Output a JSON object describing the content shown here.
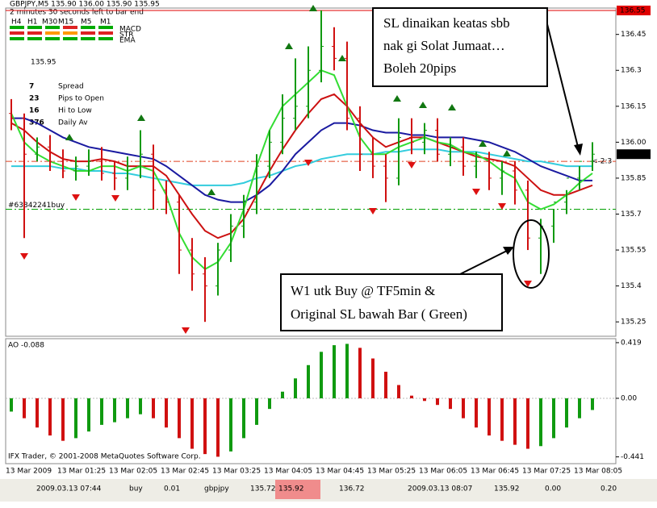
{
  "header": {
    "symbol_line": "GBPJPY,M5  135.90 136.00 135.90 135.95",
    "timer": "2 minutes 30 seconds left to bar end",
    "timeframes": [
      "H4",
      "H1",
      "M30",
      "M15",
      "M5",
      "M1"
    ],
    "indicators": [
      "MACD",
      "STR",
      "EMA"
    ],
    "price": "135.95",
    "stats": [
      {
        "value": "7",
        "label": "Spread",
        "color": "#f0a020"
      },
      {
        "value": "23",
        "label": "Pips to Open",
        "color": "#e04020"
      },
      {
        "value": "16",
        "label": "Hi to Low",
        "color": "#f0a020"
      },
      {
        "value": "376",
        "label": "Daily Av",
        "color": "#e04020"
      }
    ]
  },
  "chart_data": [
    {
      "type": "ohlc",
      "ylim": [
        135.19,
        136.56
      ],
      "yticks": [
        136.45,
        136.3,
        136.15,
        {
          "value": 136,
          "label": "136.00"
        },
        135.85,
        135.7,
        135.55,
        135.4,
        135.25
      ],
      "x_labels": [
        "13 Mar 2009",
        "13 Mar 01:25",
        "13 Mar 02:05",
        "13 Mar 02:45",
        "13 Mar 03:25",
        "13 Mar 04:05",
        "13 Mar 04:45",
        "13 Mar 05:25",
        "13 Mar 06:05",
        "13 Mar 06:45",
        "13 Mar 07:25",
        "13 Mar 08:05"
      ],
      "up_color": "#109a10",
      "down_color": "#d01010",
      "ohlc": {
        "open": [
          136.12,
          136.1,
          135.95,
          135.98,
          135.92,
          135.88,
          135.9,
          135.92,
          135.87,
          135.85,
          135.9,
          135.95,
          135.8,
          135.75,
          135.55,
          135.45,
          135.4,
          135.55,
          135.65,
          135.75,
          135.9,
          136.0,
          136.1,
          136.15,
          136.3,
          136.4,
          136.35,
          136.1,
          135.95,
          135.9,
          135.85,
          136.02,
          136.0,
          136.05,
          135.95,
          135.98,
          135.9,
          135.92,
          135.85,
          135.88,
          135.8,
          135.6,
          135.65,
          135.75,
          135.85,
          135.92
        ],
        "high": [
          136.18,
          136.12,
          136.02,
          136.03,
          135.97,
          135.94,
          135.97,
          135.98,
          135.92,
          135.94,
          136.05,
          135.99,
          135.84,
          135.78,
          135.6,
          135.52,
          135.58,
          135.7,
          135.78,
          135.95,
          136.05,
          136.2,
          136.35,
          136.4,
          136.55,
          136.48,
          136.42,
          136.15,
          136.02,
          135.95,
          136.1,
          136.1,
          136.08,
          136.1,
          136.02,
          136.02,
          135.96,
          135.96,
          135.92,
          135.92,
          135.84,
          135.68,
          135.72,
          135.8,
          135.9,
          136.0
        ],
        "low": [
          136.05,
          135.6,
          135.92,
          135.88,
          135.85,
          135.84,
          135.86,
          135.84,
          135.8,
          135.8,
          135.85,
          135.72,
          135.7,
          135.45,
          135.38,
          135.25,
          135.36,
          135.5,
          135.6,
          135.7,
          135.85,
          135.95,
          136.05,
          136.1,
          136.25,
          136.3,
          136.05,
          135.88,
          135.85,
          135.75,
          135.82,
          135.95,
          135.95,
          135.92,
          135.9,
          135.86,
          135.85,
          135.8,
          135.78,
          135.74,
          135.55,
          135.45,
          135.58,
          135.7,
          135.8,
          135.88
        ],
        "close": [
          136.1,
          135.95,
          135.98,
          135.92,
          135.88,
          135.9,
          135.92,
          135.87,
          135.85,
          135.9,
          135.95,
          135.8,
          135.75,
          135.55,
          135.45,
          135.4,
          135.55,
          135.65,
          135.75,
          135.9,
          136.0,
          136.1,
          136.15,
          136.3,
          136.4,
          136.35,
          136.1,
          135.95,
          135.9,
          135.85,
          136.02,
          136.0,
          136.05,
          135.95,
          135.98,
          135.9,
          135.92,
          135.85,
          135.88,
          135.8,
          135.6,
          135.65,
          135.75,
          135.85,
          135.92,
          135.95
        ]
      },
      "series": [
        {
          "color": "#33ccdd",
          "values": [
            135.9,
            135.9,
            135.9,
            135.9,
            135.89,
            135.89,
            135.88,
            135.88,
            135.87,
            135.87,
            135.86,
            135.85,
            135.84,
            135.83,
            135.82,
            135.82,
            135.82,
            135.82,
            135.83,
            135.85,
            135.86,
            135.88,
            135.9,
            135.91,
            135.93,
            135.94,
            135.95,
            135.95,
            135.95,
            135.96,
            135.96,
            135.97,
            135.97,
            135.97,
            135.96,
            135.96,
            135.96,
            135.95,
            135.94,
            135.93,
            135.92,
            135.92,
            135.91,
            135.9,
            135.9,
            135.9
          ]
        },
        {
          "color": "#1a1aa0",
          "values": [
            136.1,
            136.1,
            136.08,
            136.05,
            136.02,
            136.0,
            135.98,
            135.97,
            135.96,
            135.95,
            135.94,
            135.93,
            135.9,
            135.86,
            135.82,
            135.78,
            135.76,
            135.75,
            135.75,
            135.78,
            135.82,
            135.88,
            135.95,
            136.0,
            136.05,
            136.08,
            136.08,
            136.07,
            136.05,
            136.04,
            136.04,
            136.03,
            136.03,
            136.02,
            136.02,
            136.02,
            136.01,
            136.0,
            135.98,
            135.96,
            135.93,
            135.9,
            135.88,
            135.86,
            135.84,
            135.84
          ]
        },
        {
          "color": "#cc1111",
          "values": [
            136.08,
            136.05,
            136.0,
            135.96,
            135.93,
            135.92,
            135.92,
            135.93,
            135.92,
            135.9,
            135.9,
            135.9,
            135.86,
            135.78,
            135.7,
            135.63,
            135.6,
            135.62,
            135.68,
            135.78,
            135.88,
            135.97,
            136.05,
            136.12,
            136.18,
            136.2,
            136.15,
            136.08,
            136.02,
            135.98,
            136.0,
            136.02,
            136.02,
            136.0,
            135.98,
            135.96,
            135.94,
            135.93,
            135.92,
            135.9,
            135.85,
            135.8,
            135.78,
            135.78,
            135.8,
            135.82
          ]
        },
        {
          "color": "#33dd33",
          "values": [
            136.12,
            136.0,
            135.95,
            135.92,
            135.9,
            135.88,
            135.88,
            135.9,
            135.9,
            135.88,
            135.9,
            135.88,
            135.78,
            135.62,
            135.52,
            135.47,
            135.5,
            135.58,
            135.72,
            135.9,
            136.05,
            136.15,
            136.2,
            136.25,
            136.3,
            136.28,
            136.15,
            136.02,
            135.95,
            135.95,
            135.98,
            136.0,
            136.02,
            136.0,
            135.99,
            135.96,
            135.95,
            135.92,
            135.88,
            135.85,
            135.75,
            135.72,
            135.74,
            135.78,
            135.83,
            135.87
          ]
        }
      ],
      "stop_line": {
        "value": 136.55,
        "color": "#e00000"
      },
      "bid_line": {
        "value": 135.92,
        "color": "#e04020",
        "note": "<-2:3"
      },
      "order_line": {
        "value": 135.72,
        "label": "#63842241buy",
        "color": "#00a000"
      },
      "current_price": 135.95,
      "annotations": [
        [
          "SL dinaikan keatas sbb",
          "nak gi Solat Jumaat…",
          "Boleh 20pips"
        ],
        [
          "W1 utk Buy @ TF5min &",
          "Original SL bawah Bar ( Green)"
        ]
      ]
    },
    {
      "type": "bar",
      "title": "AO -0.088",
      "footer": "IFX Trader, © 2001-2008 MetaQuotes Software Corp.",
      "ylim": [
        -0.492,
        0.443
      ],
      "yticks": [
        0.419,
        {
          "value": 0,
          "label": "0.00"
        },
        -0.441
      ],
      "up_color": "#109a10",
      "down_color": "#d01010",
      "values": [
        -0.1,
        -0.15,
        -0.22,
        -0.28,
        -0.32,
        -0.3,
        -0.25,
        -0.2,
        -0.18,
        -0.15,
        -0.12,
        -0.15,
        -0.22,
        -0.3,
        -0.38,
        -0.42,
        -0.44,
        -0.4,
        -0.3,
        -0.2,
        -0.08,
        0.05,
        0.15,
        0.25,
        0.35,
        0.4,
        0.41,
        0.38,
        0.3,
        0.2,
        0.1,
        0.02,
        -0.02,
        -0.05,
        -0.08,
        -0.15,
        -0.22,
        -0.28,
        -0.32,
        -0.35,
        -0.38,
        -0.36,
        -0.3,
        -0.22,
        -0.15,
        -0.088
      ]
    }
  ],
  "status_bar": [
    "2009.03.13 07:44",
    "buy",
    "0.01",
    "gbpjpy",
    "135.72",
    "135.92",
    "136.72",
    "2009.03.13 08:07",
    "135.92",
    "0.00",
    "0.20"
  ]
}
